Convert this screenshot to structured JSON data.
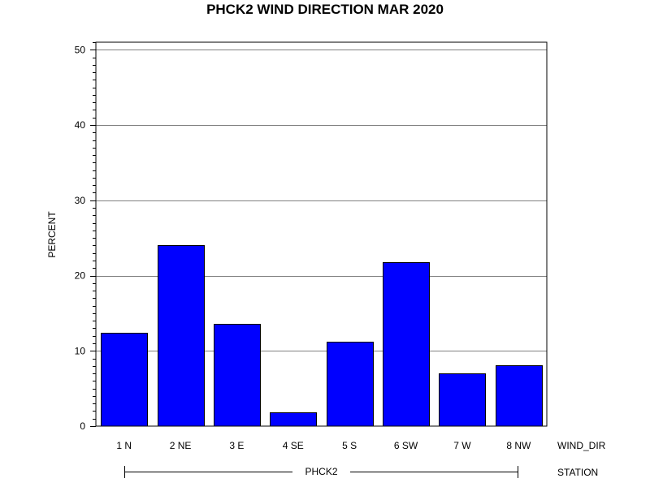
{
  "chart_data": {
    "type": "bar",
    "title": "PHCK2 WIND DIRECTION MAR 2020",
    "ylabel": "PERCENT",
    "xlabel": "WIND_DIR",
    "group_axis_label": "STATION",
    "group_label": "PHCK2",
    "categories": [
      "1 N",
      "2 NE",
      "3 E",
      "4 SE",
      "5 S",
      "6 SW",
      "7 W",
      "8 NW"
    ],
    "values": [
      12.4,
      24.0,
      13.6,
      1.8,
      11.2,
      21.8,
      7.0,
      8.1
    ],
    "ylim": [
      0,
      51
    ],
    "yticks": [
      0,
      10,
      20,
      30,
      40,
      50
    ],
    "grid": true,
    "bar_color": "#0000ff",
    "gridline_color": "#808080"
  }
}
